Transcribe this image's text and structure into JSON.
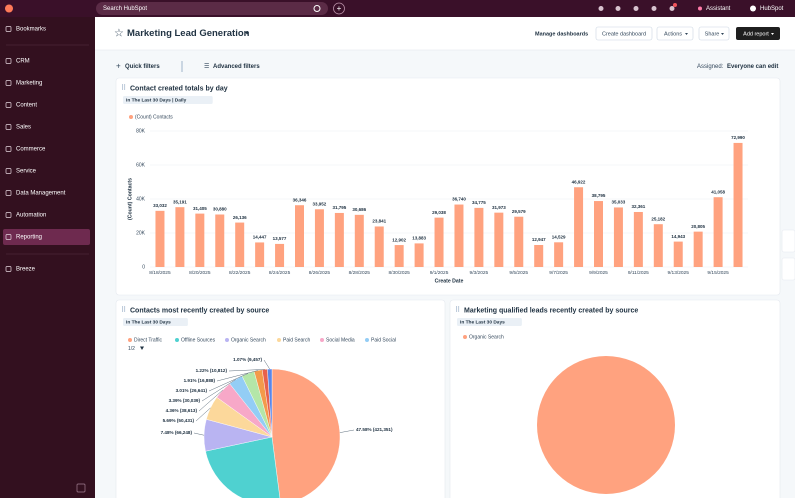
{
  "top_bar": {
    "search_placeholder": "Search HubSpot",
    "assistant": "Assistant",
    "account": "HubSpot"
  },
  "sidebar": {
    "items": [
      "Bookmarks",
      "CRM",
      "Marketing",
      "Content",
      "Sales",
      "Commerce",
      "Service",
      "Data Management",
      "Automation",
      "Reporting",
      "Breeze"
    ],
    "active_index": 9
  },
  "header": {
    "title": "Marketing Lead Generation",
    "buttons": [
      "Manage dashboards",
      "Create dashboard",
      "Actions",
      "Share",
      "Add report"
    ]
  },
  "filters": {
    "quick": "Quick filters",
    "advanced": "Advanced filters",
    "assigned_label": "Assigned:",
    "assigned_value": "Everyone can edit"
  },
  "chart_data": [
    {
      "type": "bar",
      "title": "Contact created totals by day",
      "subtitle": "In The Last 30 Days | Daily",
      "x_label": "Create Date",
      "y_label": "(Count) Contacts",
      "categories": [
        "8/18/2025",
        null,
        "8/20/2025",
        null,
        "8/22/2025",
        null,
        "8/24/2025",
        null,
        "8/26/2025",
        null,
        "8/28/2025",
        null,
        "8/30/2025",
        null,
        "9/1/2025",
        null,
        "9/3/2025",
        null,
        "9/5/2025",
        null,
        "9/7/2025",
        null,
        "9/9/2025",
        null,
        "9/11/2025",
        null,
        "9/13/2025",
        null,
        "9/15/2025",
        null
      ],
      "series": [
        {
          "name": "(Count) Contacts",
          "color": "#ffa27f",
          "values": [
            33032,
            35191,
            31405,
            30880,
            26136,
            14447,
            13577,
            36346,
            33952,
            31795,
            30686,
            23841,
            12902,
            13883,
            29038,
            36740,
            34775,
            31973,
            29579,
            12947,
            14529,
            46922,
            38795,
            35033,
            32361,
            25182,
            14943,
            20805,
            41058,
            72990
          ],
          "value_labels": [
            "33,032",
            "35,191",
            "31,405",
            "30,880",
            "26,136",
            "14,447",
            "13,577",
            "36,346",
            "33,952",
            "31,795",
            "30,686",
            "23,841",
            "12,902",
            "13,883",
            "29,038",
            "36,740",
            "34,775",
            "31,973",
            "29,579",
            "12,947",
            "14,529",
            "46,922",
            "38,795",
            "35,033",
            "32,361",
            "25,182",
            "14,943",
            "20,805",
            "41,058",
            "72,990"
          ]
        }
      ],
      "ylim": [
        0,
        80000
      ],
      "yticks": [
        0,
        {
          "value": 20000,
          "label": "20K"
        },
        {
          "value": 40000,
          "label": "40K"
        },
        {
          "value": 60000,
          "label": "60K"
        },
        {
          "value": 80000,
          "label": "80K"
        }
      ],
      "grid": true
    },
    {
      "type": "pie",
      "title": "Contacts most recently created by source",
      "subtitle": "In The Last 30 Days",
      "legend_page": "1/2",
      "categories": [
        "Direct Traffic",
        "Offline Sources",
        "Organic Search",
        "Paid Search",
        "Social Media",
        "Paid Social",
        null,
        null,
        null,
        null
      ],
      "values": [
        47.58,
        23.5,
        7.48,
        5.69,
        4.36,
        3.39,
        3.01,
        1.91,
        1.22,
        1.07
      ],
      "value_labels": [
        "47.58% (421,351)",
        null,
        "7.48% (66,248)",
        "5.69% (50,431)",
        "4.36% (38,613)",
        "3.39% (30,039)",
        "3.01% (26,641)",
        "1.91% (16,888)",
        "1.22% (10,812)",
        "1.07% (9,457)"
      ],
      "colors": [
        "#ffa27f",
        "#4fd1d0",
        "#b9b4f2",
        "#fcd89b",
        "#f7a8c8",
        "#93cdf5",
        "#b4e6a8",
        "#f39a4b",
        "#e8604c",
        "#5a86e8"
      ]
    },
    {
      "type": "pie",
      "title": "Marketing qualified leads recently created by source",
      "subtitle": "In The Last 30 Days",
      "categories": [
        "Organic Search"
      ],
      "values": [
        100
      ],
      "colors": [
        "#ffa27f"
      ]
    }
  ]
}
